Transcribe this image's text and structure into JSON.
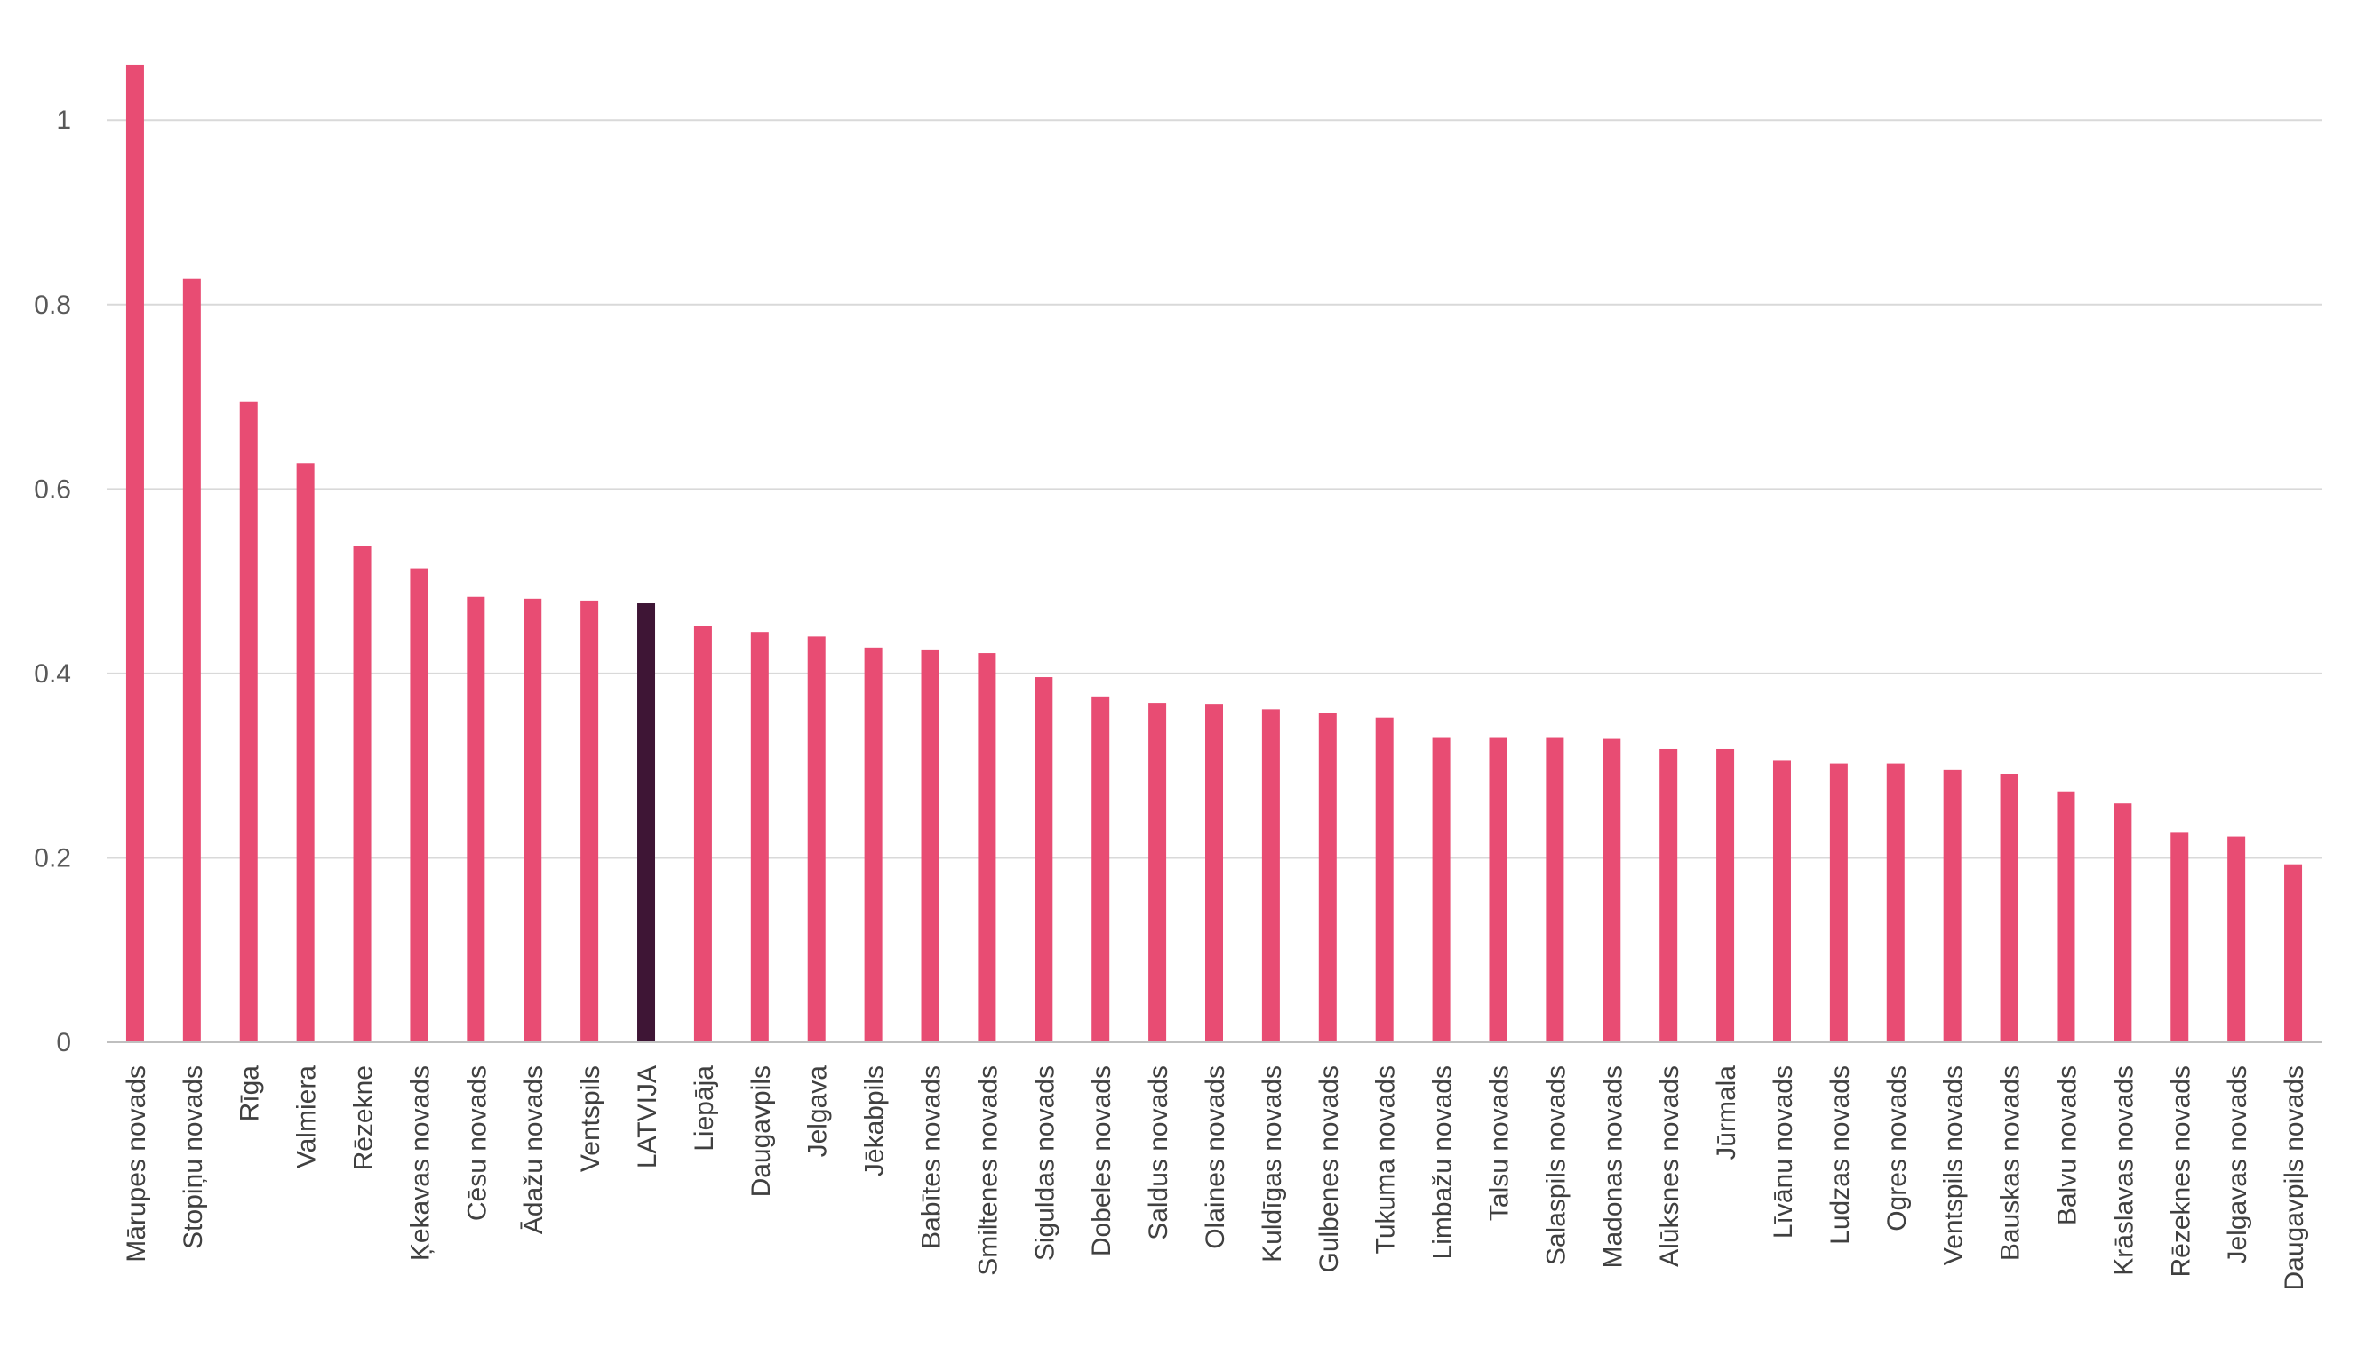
{
  "chart_data": {
    "type": "bar",
    "title": "",
    "xlabel": "",
    "ylabel": "",
    "ylim": [
      0,
      1.0667
    ],
    "yticks": [
      0,
      0.2,
      0.4,
      0.6,
      0.8,
      1
    ],
    "ytick_labels": [
      "0",
      "0.2",
      "0.4",
      "0.6",
      "0.8",
      "1"
    ],
    "grid": "horizontal",
    "colors": {
      "bar": "#E84C73",
      "highlight": "#3E1535",
      "grid": "#D9D9D9",
      "axis": "#BFBFBF"
    },
    "highlight_category": "LATVIJA",
    "categories": [
      "Mārupes novads",
      "Stopiņu novads",
      "Rīga",
      "Valmiera",
      "Rēzekne",
      "Ķekavas novads",
      "Cēsu novads",
      "Ādažu novads",
      "Ventspils",
      "LATVIJA",
      "Liepāja",
      "Daugavpils",
      "Jelgava",
      "Jēkabpils",
      "Babītes novads",
      "Smiltenes novads",
      "Siguldas novads",
      "Dobeles novads",
      "Saldus novads",
      "Olaines novads",
      "Kuldīgas novads",
      "Gulbenes novads",
      "Tukuma novads",
      "Limbažu novads",
      "Talsu novads",
      "Salaspils novads",
      "Madonas novads",
      "Alūksnes novads",
      "Jūrmala",
      "Līvānu novads",
      "Ludzas novads",
      "Ogres novads",
      "Ventspils novads",
      "Bauskas novads",
      "Balvu novads",
      "Krāslavas novads",
      "Rēzeknes novads",
      "Jelgavas novads",
      "Daugavpils novads"
    ],
    "values": [
      1.06,
      0.828,
      0.695,
      0.628,
      0.538,
      0.514,
      0.483,
      0.481,
      0.479,
      0.476,
      0.451,
      0.445,
      0.44,
      0.428,
      0.426,
      0.422,
      0.396,
      0.375,
      0.368,
      0.367,
      0.361,
      0.357,
      0.352,
      0.33,
      0.33,
      0.33,
      0.329,
      0.318,
      0.318,
      0.306,
      0.302,
      0.302,
      0.295,
      0.291,
      0.272,
      0.259,
      0.228,
      0.223,
      0.193
    ]
  }
}
